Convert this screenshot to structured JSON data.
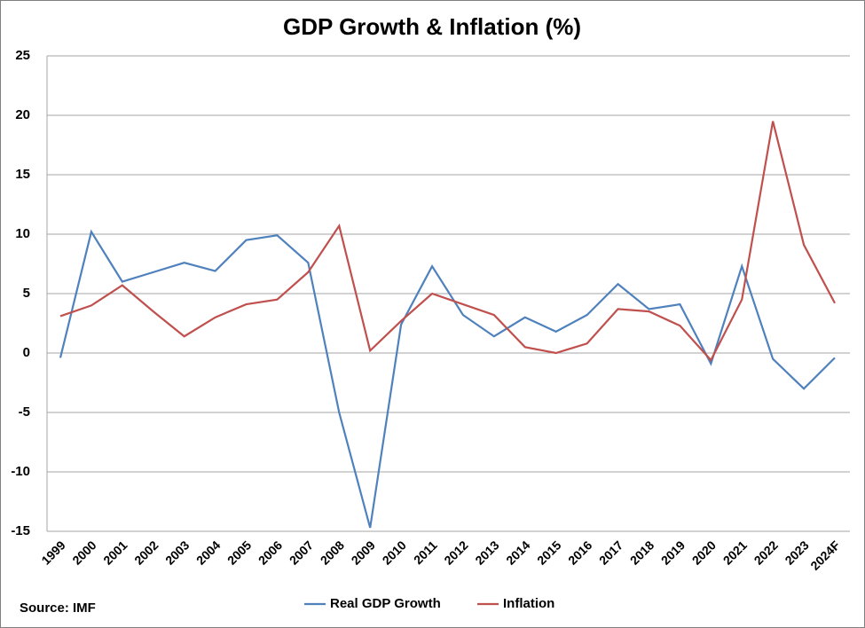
{
  "chart_data": {
    "type": "line",
    "title": "GDP Growth & Inflation (%)",
    "source": "Source: IMF",
    "categories": [
      "1999",
      "2000",
      "2001",
      "2002",
      "2003",
      "2004",
      "2005",
      "2006",
      "2007",
      "2008",
      "2009",
      "2010",
      "2011",
      "2012",
      "2013",
      "2014",
      "2015",
      "2016",
      "2017",
      "2018",
      "2019",
      "2020",
      "2021",
      "2022",
      "2023",
      "2024F"
    ],
    "series": [
      {
        "name": "Real GDP Growth",
        "color": "#4f81bd",
        "values": [
          -0.4,
          10.2,
          6.0,
          6.8,
          7.6,
          6.9,
          9.5,
          9.9,
          7.6,
          -5.0,
          -14.7,
          2.4,
          7.3,
          3.2,
          1.4,
          3.0,
          1.8,
          3.2,
          5.8,
          3.7,
          4.1,
          -0.9,
          7.3,
          -0.5,
          -3.0,
          -0.4
        ]
      },
      {
        "name": "Inflation",
        "color": "#c0504d",
        "values": [
          3.1,
          4.0,
          5.7,
          3.5,
          1.4,
          3.0,
          4.1,
          4.5,
          6.8,
          10.7,
          0.2,
          2.7,
          5.0,
          4.1,
          3.2,
          0.5,
          0.0,
          0.8,
          3.7,
          3.5,
          2.3,
          -0.6,
          4.5,
          19.5,
          9.1,
          4.2
        ]
      }
    ],
    "ylim": [
      -15,
      25
    ],
    "yticks": [
      -15,
      -10,
      -5,
      0,
      5,
      10,
      15,
      20,
      25
    ],
    "grid": true,
    "legend": "bottom"
  }
}
